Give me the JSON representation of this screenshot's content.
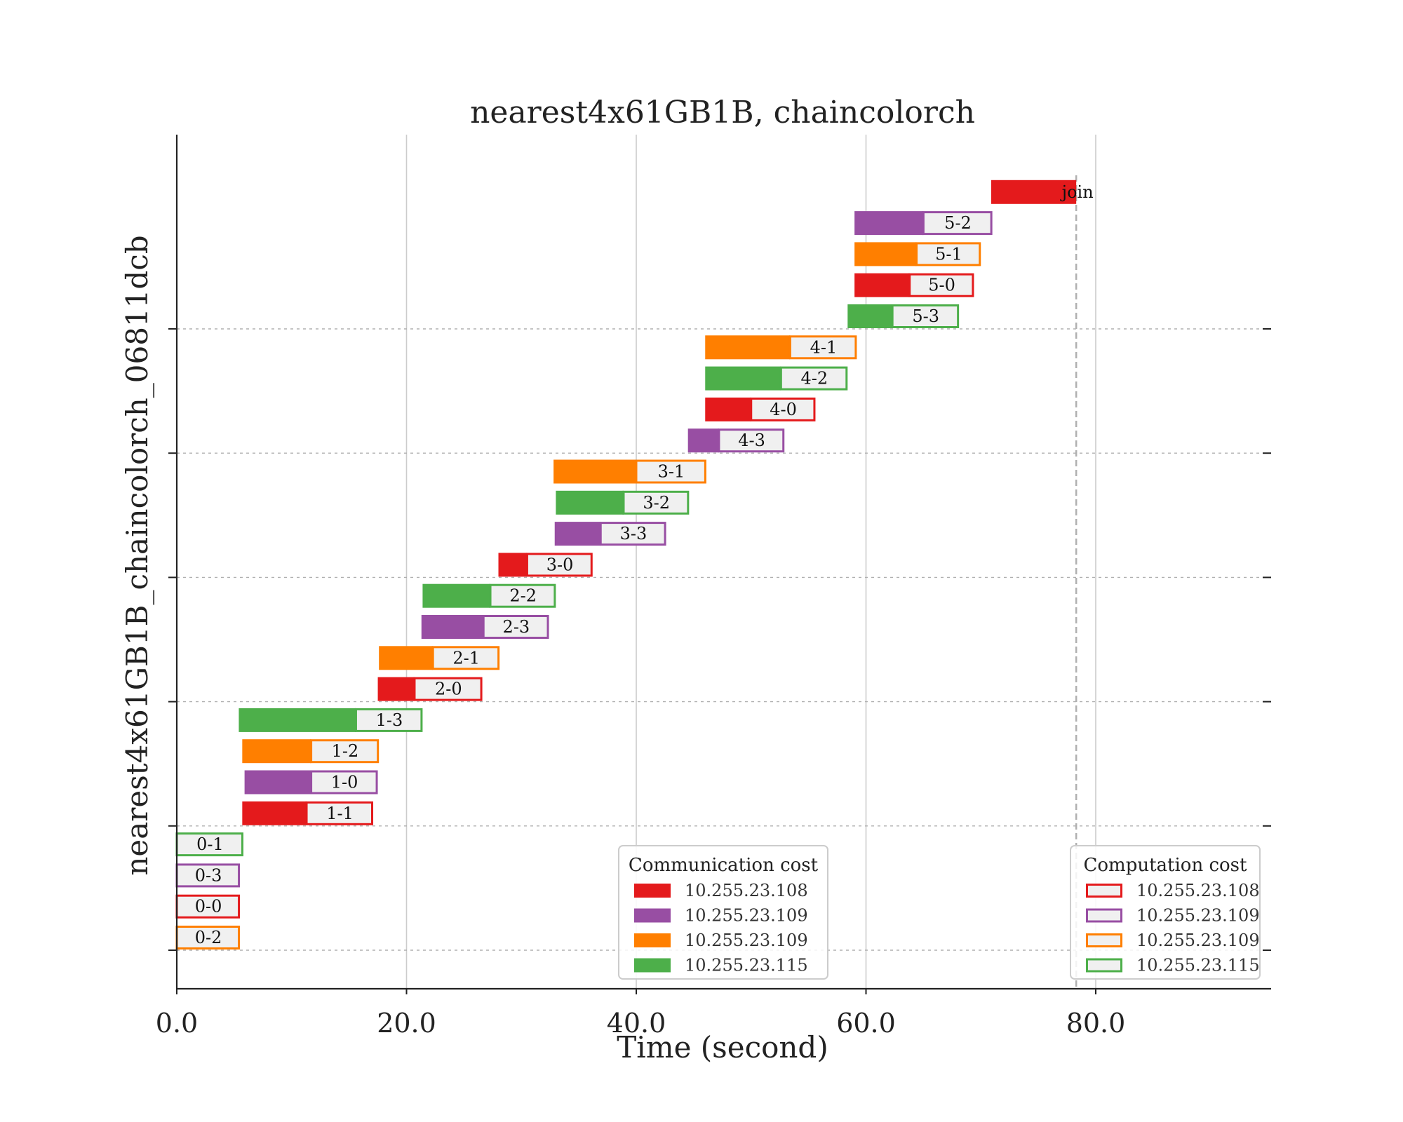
{
  "chart_data": {
    "type": "bar",
    "subtype": "gantt",
    "title": "nearest4x61GB1B, chaincolorch",
    "xlabel": "Time (second)",
    "ylabel": "nearest4x61GB1B_chaincolorch_06811dcb",
    "xlim": [
      0,
      95
    ],
    "xticks": [
      "0.0",
      "20.0",
      "40.0",
      "60.0",
      "80.0"
    ],
    "xtick_values": [
      0,
      20,
      40,
      60,
      80
    ],
    "grid": {
      "x": "solid",
      "y": "dashed"
    },
    "end_marker_time": 78.3,
    "colors": {
      "10.255.23.108": "#e41a1c",
      "10.255.23.109a": "#984ea3",
      "10.255.23.109b": "#ff7f00",
      "10.255.23.115": "#4daf4a"
    },
    "legend_comm": {
      "title": "Communication cost",
      "placement": "lower-center",
      "entries": [
        {
          "label": "10.255.23.108",
          "color": "#e41a1c"
        },
        {
          "label": "10.255.23.109",
          "color": "#984ea3"
        },
        {
          "label": "10.255.23.109",
          "color": "#ff7f00"
        },
        {
          "label": "10.255.23.115",
          "color": "#4daf4a"
        }
      ]
    },
    "legend_comp": {
      "title": "Computation cost",
      "placement": "lower-right",
      "entries": [
        {
          "label": "10.255.23.108",
          "color": "#e41a1c"
        },
        {
          "label": "10.255.23.109",
          "color": "#984ea3"
        },
        {
          "label": "10.255.23.109",
          "color": "#ff7f00"
        },
        {
          "label": "10.255.23.115",
          "color": "#4daf4a"
        }
      ]
    },
    "tasks": [
      {
        "label": "0-2",
        "color": "#ff7f00",
        "start": 0.0,
        "comm_end": 0.0,
        "end": 5.5
      },
      {
        "label": "0-0",
        "color": "#e41a1c",
        "start": 0.0,
        "comm_end": 0.0,
        "end": 5.5
      },
      {
        "label": "0-3",
        "color": "#984ea3",
        "start": 0.0,
        "comm_end": 0.0,
        "end": 5.5
      },
      {
        "label": "0-1",
        "color": "#4daf4a",
        "start": 0.0,
        "comm_end": 0.0,
        "end": 5.8
      },
      {
        "label": "1-1",
        "color": "#e41a1c",
        "start": 5.7,
        "comm_end": 11.3,
        "end": 17.1
      },
      {
        "label": "1-0",
        "color": "#984ea3",
        "start": 5.9,
        "comm_end": 11.7,
        "end": 17.5
      },
      {
        "label": "1-2",
        "color": "#ff7f00",
        "start": 5.7,
        "comm_end": 11.7,
        "end": 17.6
      },
      {
        "label": "1-3",
        "color": "#4daf4a",
        "start": 5.4,
        "comm_end": 15.6,
        "end": 21.4
      },
      {
        "label": "2-0",
        "color": "#e41a1c",
        "start": 17.5,
        "comm_end": 20.7,
        "end": 26.6
      },
      {
        "label": "2-1",
        "color": "#ff7f00",
        "start": 17.6,
        "comm_end": 22.3,
        "end": 28.1
      },
      {
        "label": "2-3",
        "color": "#984ea3",
        "start": 21.3,
        "comm_end": 26.7,
        "end": 32.4
      },
      {
        "label": "2-2",
        "color": "#4daf4a",
        "start": 21.4,
        "comm_end": 27.3,
        "end": 33.0
      },
      {
        "label": "3-0",
        "color": "#e41a1c",
        "start": 28.0,
        "comm_end": 30.5,
        "end": 36.2
      },
      {
        "label": "3-3",
        "color": "#984ea3",
        "start": 32.9,
        "comm_end": 36.9,
        "end": 42.6
      },
      {
        "label": "3-2",
        "color": "#4daf4a",
        "start": 33.0,
        "comm_end": 38.9,
        "end": 44.6
      },
      {
        "label": "3-1",
        "color": "#ff7f00",
        "start": 32.8,
        "comm_end": 40.0,
        "end": 46.1
      },
      {
        "label": "4-3",
        "color": "#984ea3",
        "start": 44.5,
        "comm_end": 47.2,
        "end": 52.9
      },
      {
        "label": "4-0",
        "color": "#e41a1c",
        "start": 46.0,
        "comm_end": 50.0,
        "end": 55.6
      },
      {
        "label": "4-2",
        "color": "#4daf4a",
        "start": 46.0,
        "comm_end": 52.6,
        "end": 58.4
      },
      {
        "label": "4-1",
        "color": "#ff7f00",
        "start": 46.0,
        "comm_end": 53.4,
        "end": 59.2
      },
      {
        "label": "5-3",
        "color": "#4daf4a",
        "start": 58.4,
        "comm_end": 62.3,
        "end": 68.1
      },
      {
        "label": "5-0",
        "color": "#e41a1c",
        "start": 59.0,
        "comm_end": 63.8,
        "end": 69.4
      },
      {
        "label": "5-1",
        "color": "#ff7f00",
        "start": 59.0,
        "comm_end": 64.4,
        "end": 70.0
      },
      {
        "label": "5-2",
        "color": "#984ea3",
        "start": 59.0,
        "comm_end": 65.0,
        "end": 71.0
      },
      {
        "label": "join",
        "color": "#e41a1c",
        "start": 70.9,
        "comm_end": 78.3,
        "end": 78.3
      }
    ]
  }
}
